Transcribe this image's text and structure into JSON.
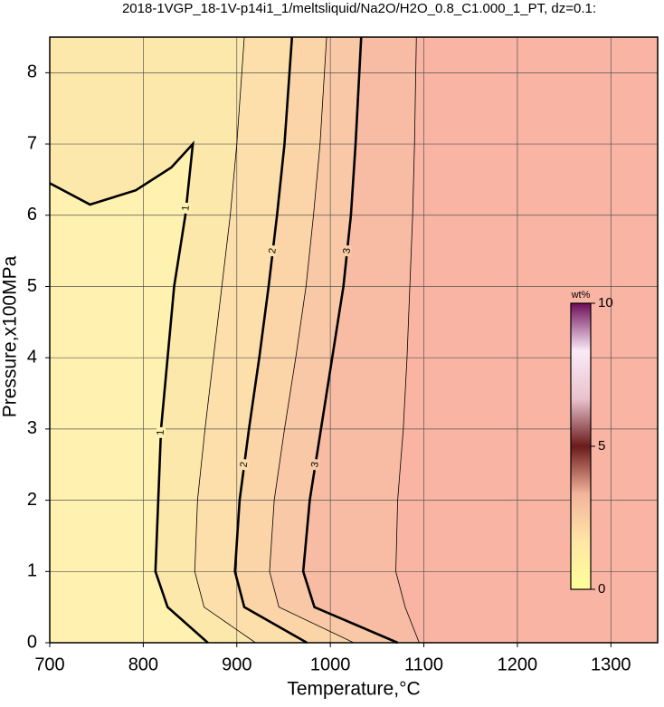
{
  "chart_data": {
    "type": "contour",
    "title": "2018-1VGP_18-1V-p14i1_1/meltsliquid/Na2O/H2O_0.8_C1.000_1_PT, dz=0.1:",
    "x_label": "Temperature,°C",
    "y_label": "Pressure,x100MPa",
    "xlim": [
      700,
      1350
    ],
    "ylim": [
      0,
      8.5
    ],
    "xticks": [
      700,
      800,
      900,
      1000,
      1100,
      1200,
      1300
    ],
    "yticks": [
      0,
      1,
      2,
      3,
      4,
      5,
      6,
      7,
      8
    ],
    "grid": true,
    "background": "#f9b4a3",
    "contours": [
      {
        "level": 3.5,
        "bold": false,
        "fill": "#f8bca4",
        "x": [
          1095,
          1080,
          1070,
          1072,
          1078,
          1082,
          1085,
          1088,
          1090,
          1092
        ],
        "y": [
          0,
          0.5,
          1,
          2,
          3,
          4,
          5,
          6,
          7,
          8.5
        ]
      },
      {
        "level": 3,
        "bold": true,
        "fill": "#f9c8a6",
        "label_at": [
          2.5,
          5.5
        ],
        "x": [
          1072,
          983,
          971,
          978,
          990,
          1002,
          1014,
          1022,
          1027,
          1033
        ],
        "y": [
          0,
          0.5,
          1,
          2,
          3,
          4,
          5,
          6,
          7,
          8.5
        ]
      },
      {
        "level": 2.5,
        "bold": false,
        "fill": "#fbd4a8",
        "x": [
          1025,
          945,
          935,
          940,
          951,
          963,
          974,
          982,
          989,
          996
        ],
        "y": [
          0,
          0.5,
          1,
          2,
          3,
          4,
          5,
          6,
          7,
          8.5
        ]
      },
      {
        "level": 2,
        "bold": true,
        "fill": "#fcdfaa",
        "label_at": [
          2.5,
          5.5
        ],
        "x": [
          975,
          908,
          898,
          903,
          913,
          924,
          934,
          943,
          951,
          959
        ],
        "y": [
          0,
          0.5,
          1,
          2,
          3,
          4,
          5,
          6,
          7,
          8.5
        ]
      },
      {
        "level": 1.5,
        "bold": false,
        "fill": "#fde8ac",
        "x": [
          920,
          865,
          855,
          858,
          866,
          875,
          884,
          893,
          900,
          908
        ],
        "y": [
          0,
          0.5,
          1,
          2,
          3,
          4,
          5,
          6,
          7,
          8.5
        ]
      },
      {
        "level": 1,
        "bold": true,
        "fill": "#fff1b0",
        "label_at": [
          2.95,
          6.1
        ],
        "x": [
          869,
          826,
          813,
          816,
          819,
          826,
          833,
          845,
          853,
          830,
          792,
          743,
          700
        ],
        "y": [
          0,
          0.5,
          1,
          2,
          3,
          4,
          5,
          6,
          7,
          6.67,
          6.35,
          6.15,
          6.45
        ]
      }
    ],
    "colorbar": {
      "label": "wt%",
      "clim": [
        0,
        10
      ],
      "ticks": [
        0,
        5,
        10
      ],
      "colors": [
        "#ffff99",
        "#ffe6a6",
        "#f2b49b",
        "#6a1b1b",
        "#e9c3cf",
        "#faeaf6",
        "#6e0e5a"
      ]
    }
  }
}
